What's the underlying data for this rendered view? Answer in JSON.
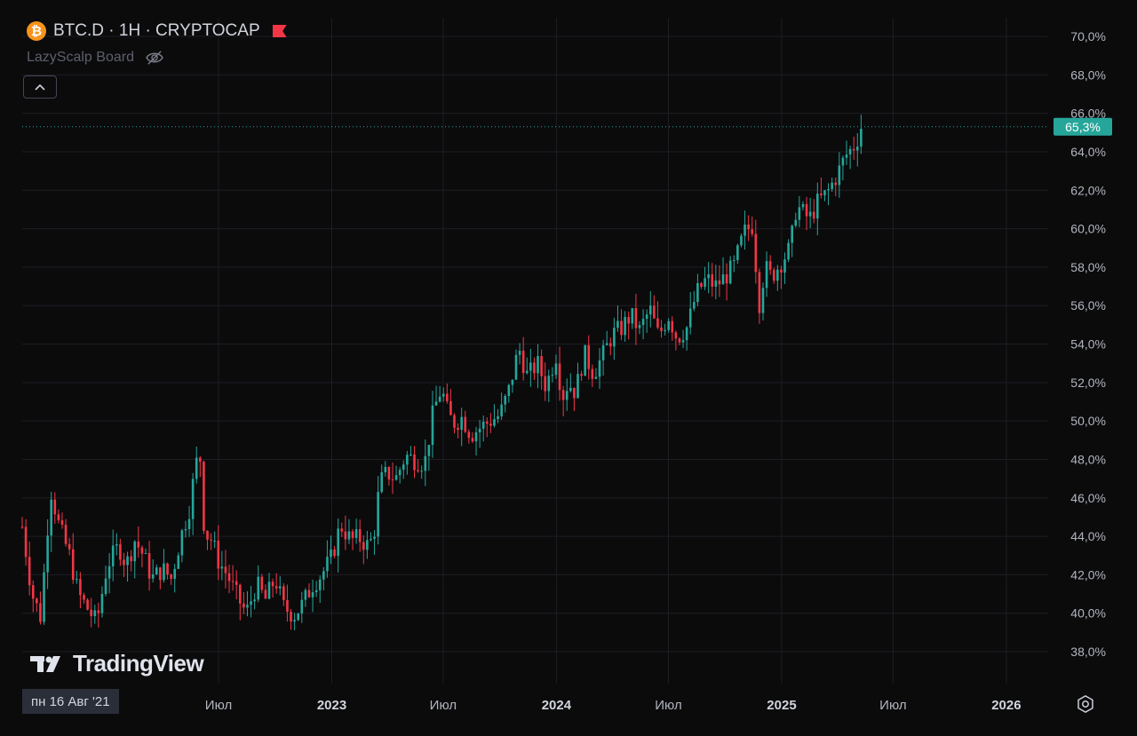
{
  "header": {
    "symbol": "BTC.D · 1H · CRYPTOCAP",
    "coin_glyph": "₿",
    "indicator_name": "LazyScalp Board"
  },
  "brand": {
    "name": "TradingView"
  },
  "crosshair_date": "пн 16 Авг '21",
  "colors": {
    "up": "#26a69a",
    "down": "#f23645",
    "last_price": "#26a69a",
    "grid": "#1c1e24"
  },
  "icons": {
    "coin": "bitcoin-icon",
    "flag": "flag-icon",
    "eye": "eye-off-icon",
    "collapse": "chevron-up-icon",
    "settings": "gear-icon"
  },
  "chart_data": {
    "type": "candlestick",
    "y_axis": {
      "min": 37.2,
      "max": 70.6,
      "ticks": [
        38,
        40,
        42,
        44,
        46,
        48,
        50,
        52,
        54,
        56,
        58,
        60,
        62,
        64,
        66,
        68,
        70
      ],
      "tick_labels": [
        "38,0%",
        "40,0%",
        "42,0%",
        "44,0%",
        "46,0%",
        "48,0%",
        "50,0%",
        "52,0%",
        "54,0%",
        "56,0%",
        "58,0%",
        "60,0%",
        "62,0%",
        "64,0%",
        "66,0%",
        "68,0%",
        "70,0%"
      ]
    },
    "x_axis": {
      "start": "2021-08-16",
      "end": "2026-03-10",
      "ticks": [
        {
          "date": "2022-07-01",
          "label": "Июл",
          "major": false
        },
        {
          "date": "2023-01-01",
          "label": "2023",
          "major": true
        },
        {
          "date": "2023-07-01",
          "label": "Июл",
          "major": false
        },
        {
          "date": "2024-01-01",
          "label": "2024",
          "major": true
        },
        {
          "date": "2024-07-01",
          "label": "Июл",
          "major": false
        },
        {
          "date": "2025-01-01",
          "label": "2025",
          "major": true
        },
        {
          "date": "2025-07-01",
          "label": "Июл",
          "major": false
        },
        {
          "date": "2026-01-01",
          "label": "2026",
          "major": true
        }
      ]
    },
    "last_price": 65.3,
    "last_price_label": "65,3%",
    "trend_points": [
      [
        "2021-08-16",
        44.5
      ],
      [
        "2021-09-01",
        41.0
      ],
      [
        "2021-09-15",
        39.8
      ],
      [
        "2021-10-01",
        46.5
      ],
      [
        "2021-10-15",
        44.5
      ],
      [
        "2021-11-01",
        43.0
      ],
      [
        "2021-11-15",
        41.0
      ],
      [
        "2021-12-01",
        40.2
      ],
      [
        "2021-12-15",
        39.5
      ],
      [
        "2022-01-01",
        42.5
      ],
      [
        "2022-01-20",
        43.5
      ],
      [
        "2022-02-01",
        42.5
      ],
      [
        "2022-02-15",
        43.8
      ],
      [
        "2022-03-01",
        43.0
      ],
      [
        "2022-03-15",
        41.8
      ],
      [
        "2022-04-01",
        42.3
      ],
      [
        "2022-04-15",
        41.8
      ],
      [
        "2022-05-01",
        44.0
      ],
      [
        "2022-05-15",
        45.5
      ],
      [
        "2022-05-25",
        47.8
      ],
      [
        "2022-06-01",
        48.1
      ],
      [
        "2022-06-08",
        44.2
      ],
      [
        "2022-06-20",
        43.8
      ],
      [
        "2022-07-01",
        42.7
      ],
      [
        "2022-07-15",
        42.0
      ],
      [
        "2022-08-01",
        40.8
      ],
      [
        "2022-08-15",
        40.0
      ],
      [
        "2022-09-01",
        41.5
      ],
      [
        "2022-09-15",
        40.7
      ],
      [
        "2022-10-01",
        41.8
      ],
      [
        "2022-10-15",
        40.3
      ],
      [
        "2022-11-01",
        39.9
      ],
      [
        "2022-11-15",
        40.5
      ],
      [
        "2022-12-01",
        41.5
      ],
      [
        "2022-12-15",
        42.0
      ],
      [
        "2023-01-01",
        42.9
      ],
      [
        "2023-01-15",
        44.6
      ],
      [
        "2023-02-01",
        43.8
      ],
      [
        "2023-02-15",
        43.9
      ],
      [
        "2023-03-01",
        43.5
      ],
      [
        "2023-03-10",
        44.0
      ],
      [
        "2023-03-20",
        46.8
      ],
      [
        "2023-04-01",
        47.3
      ],
      [
        "2023-04-15",
        47.0
      ],
      [
        "2023-05-01",
        48.2
      ],
      [
        "2023-05-15",
        48.0
      ],
      [
        "2023-06-01",
        47.8
      ],
      [
        "2023-06-15",
        50.5
      ],
      [
        "2023-06-28",
        51.7
      ],
      [
        "2023-07-10",
        50.2
      ],
      [
        "2023-07-20",
        49.9
      ],
      [
        "2023-08-01",
        50.2
      ],
      [
        "2023-08-15",
        49.3
      ],
      [
        "2023-09-01",
        49.7
      ],
      [
        "2023-09-15",
        50.0
      ],
      [
        "2023-10-01",
        50.3
      ],
      [
        "2023-10-15",
        51.5
      ],
      [
        "2023-11-01",
        53.8
      ],
      [
        "2023-11-15",
        52.3
      ],
      [
        "2023-12-01",
        53.0
      ],
      [
        "2023-12-15",
        51.8
      ],
      [
        "2024-01-01",
        53.5
      ],
      [
        "2024-01-10",
        51.2
      ],
      [
        "2024-01-20",
        52.0
      ],
      [
        "2024-02-01",
        51.5
      ],
      [
        "2024-02-15",
        53.5
      ],
      [
        "2024-03-01",
        52.5
      ],
      [
        "2024-03-15",
        53.3
      ],
      [
        "2024-04-01",
        54.5
      ],
      [
        "2024-04-15",
        54.8
      ],
      [
        "2024-05-01",
        55.5
      ],
      [
        "2024-05-15",
        54.7
      ],
      [
        "2024-06-01",
        55.8
      ],
      [
        "2024-06-15",
        54.4
      ],
      [
        "2024-07-01",
        55.5
      ],
      [
        "2024-07-15",
        54.3
      ],
      [
        "2024-08-01",
        54.9
      ],
      [
        "2024-08-15",
        56.6
      ],
      [
        "2024-09-01",
        57.4
      ],
      [
        "2024-09-15",
        57.0
      ],
      [
        "2024-10-01",
        57.5
      ],
      [
        "2024-10-15",
        58.0
      ],
      [
        "2024-11-01",
        59.8
      ],
      [
        "2024-11-15",
        60.2
      ],
      [
        "2024-11-25",
        56.0
      ],
      [
        "2024-12-05",
        58.0
      ],
      [
        "2024-12-15",
        57.5
      ],
      [
        "2025-01-01",
        58.3
      ],
      [
        "2025-01-15",
        59.0
      ],
      [
        "2025-01-25",
        61.2
      ],
      [
        "2025-02-05",
        60.8
      ],
      [
        "2025-02-15",
        60.5
      ],
      [
        "2025-03-01",
        61.4
      ],
      [
        "2025-03-15",
        61.8
      ],
      [
        "2025-04-01",
        62.8
      ],
      [
        "2025-04-15",
        63.8
      ],
      [
        "2025-05-01",
        64.4
      ],
      [
        "2025-05-10",
        65.3
      ]
    ]
  }
}
